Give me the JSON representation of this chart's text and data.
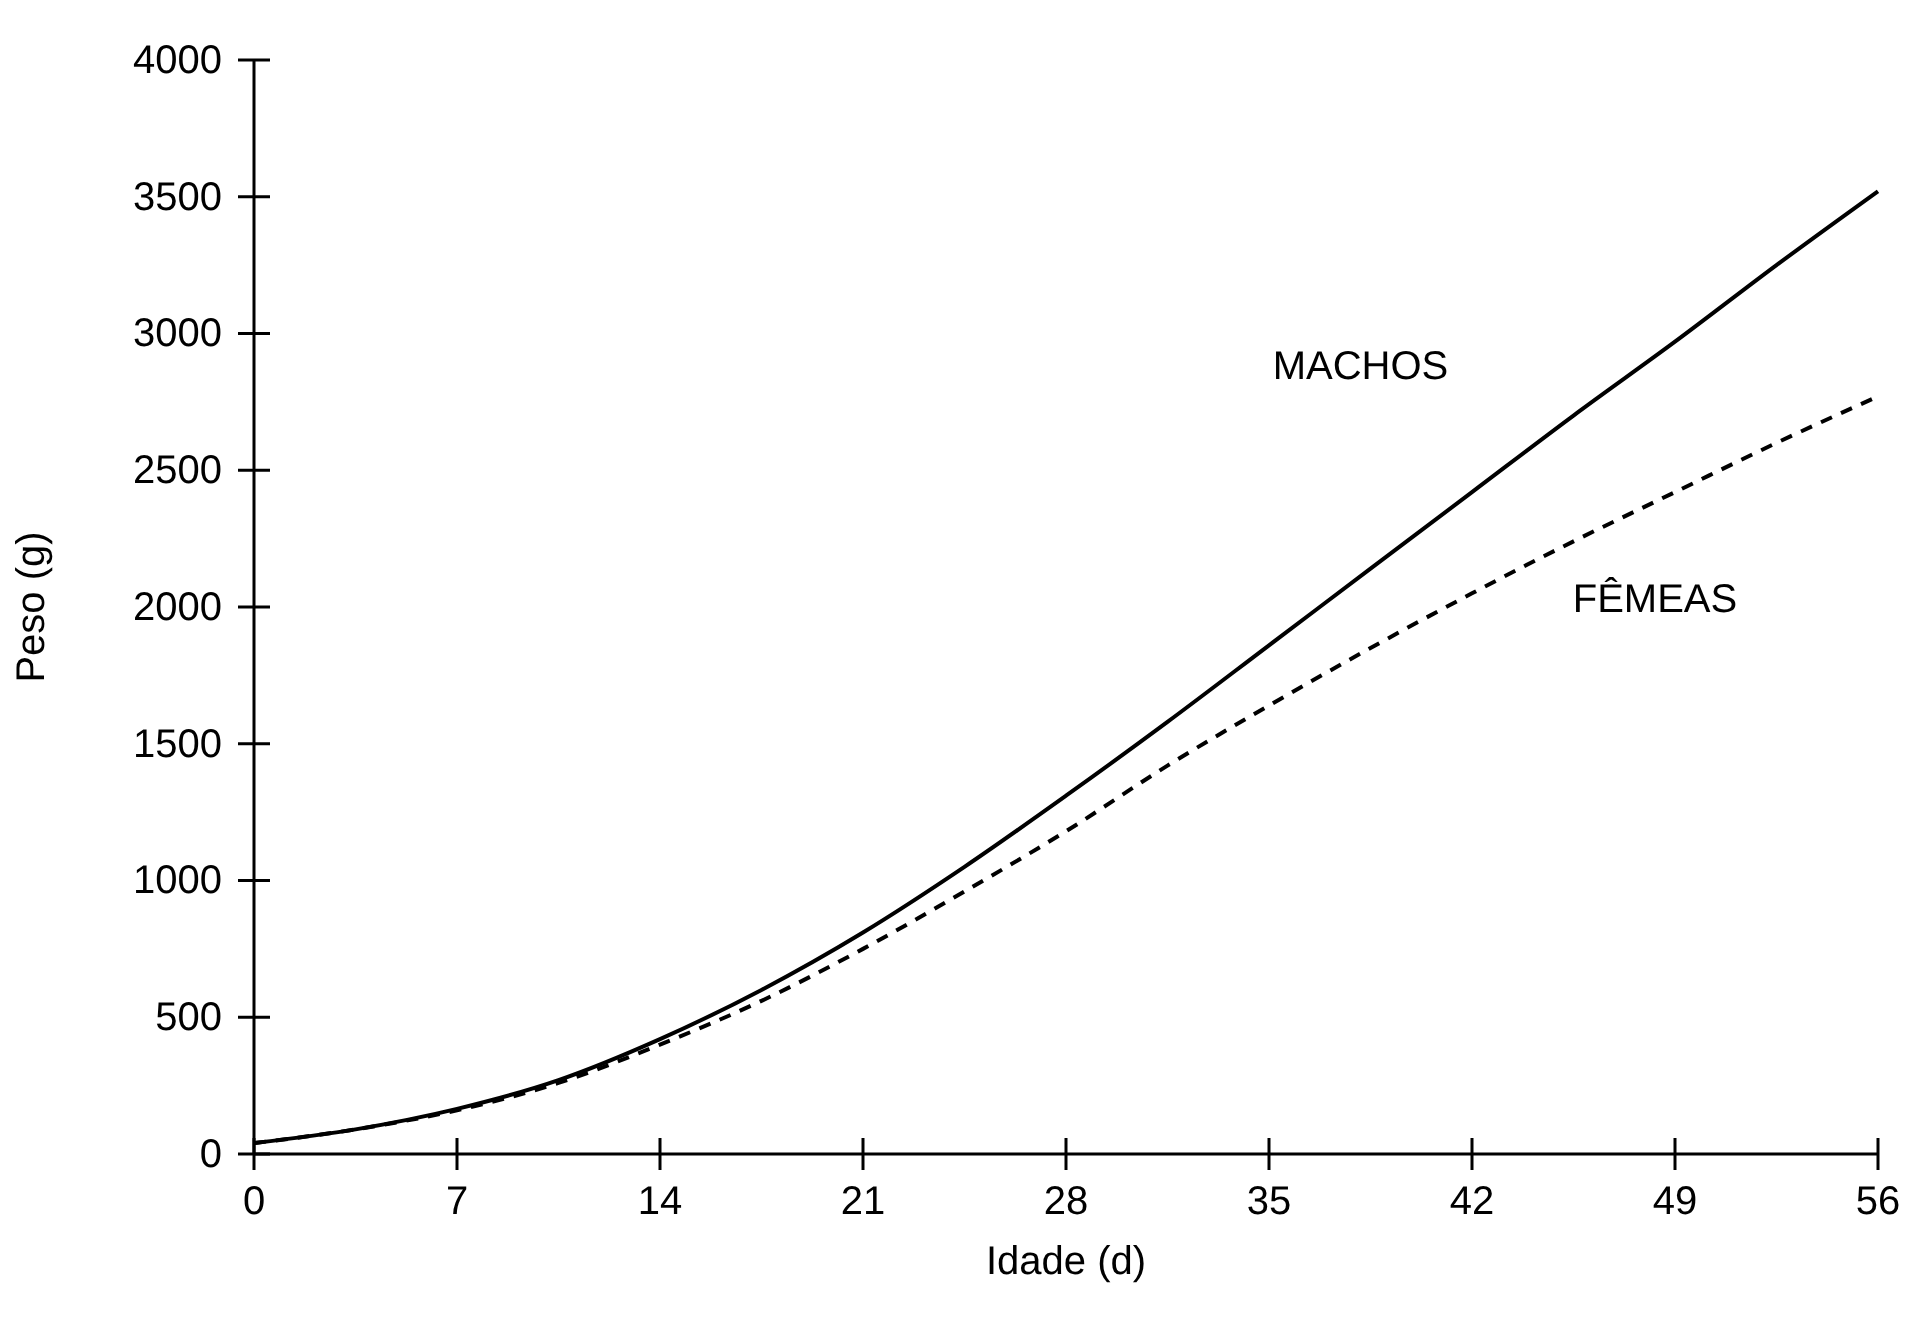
{
  "chart_data": {
    "type": "line",
    "xlabel": "Idade (d)",
    "ylabel": "Peso (g)",
    "xlim": [
      0,
      56
    ],
    "ylim": [
      0,
      4000
    ],
    "xticks": [
      0,
      7,
      14,
      21,
      28,
      35,
      42,
      49,
      56
    ],
    "yticks": [
      0,
      500,
      1000,
      1500,
      2000,
      2500,
      3000,
      3500,
      4000
    ],
    "grid": false,
    "marker": "none",
    "x": [
      0,
      3.5,
      7,
      10.5,
      14,
      17.5,
      21,
      24.5,
      28,
      31.5,
      35,
      38.5,
      42,
      45.5,
      49,
      52.5,
      56
    ],
    "series": [
      {
        "name": "MACHOS",
        "color": "#000000",
        "line_style": "solid",
        "values": [
          40,
          90,
          165,
          270,
          420,
          600,
          810,
          1050,
          1310,
          1580,
          1860,
          2140,
          2420,
          2700,
          2970,
          3250,
          3520
        ]
      },
      {
        "name": "FÊMEAS",
        "color": "#000000",
        "line_style": "dashed",
        "values": [
          40,
          90,
          160,
          260,
          400,
          560,
          750,
          960,
          1180,
          1420,
          1640,
          1850,
          2050,
          2240,
          2420,
          2600,
          2770
        ]
      }
    ]
  }
}
